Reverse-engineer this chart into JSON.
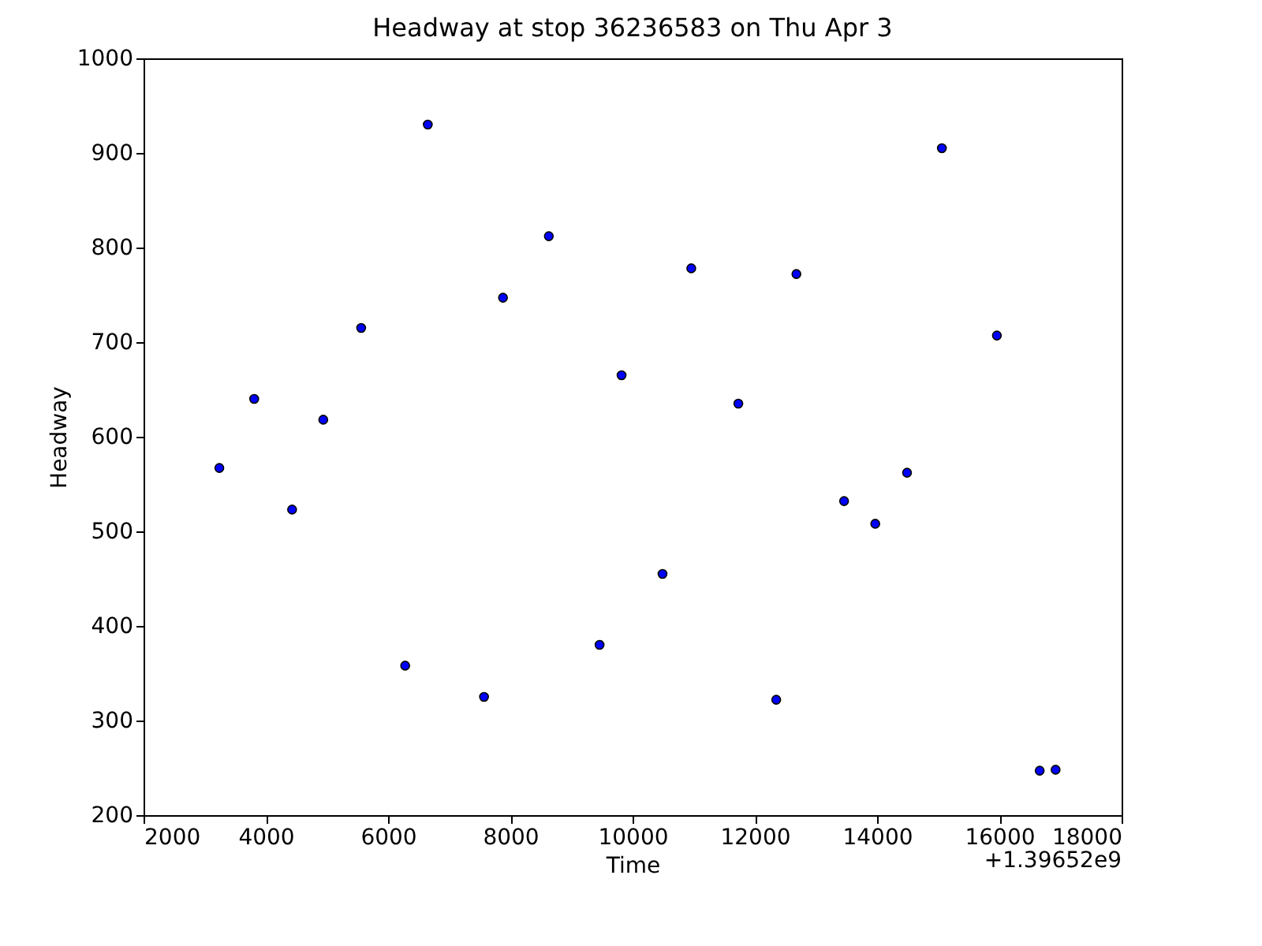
{
  "chart_data": {
    "type": "scatter",
    "title": "Headway at stop 36236583 on Thu Apr 3",
    "xlabel": "Time",
    "ylabel": "Headway",
    "annotations": [
      "+1.39652e9"
    ],
    "x": [
      3240,
      3810,
      4430,
      4940,
      5560,
      6280,
      6650,
      7570,
      7880,
      8630,
      9460,
      9820,
      10490,
      10960,
      11730,
      12350,
      12680,
      13460,
      13970,
      14490,
      15060,
      15960,
      16660,
      16920
    ],
    "series": [
      {
        "color": "#0000ff",
        "values": [
          567,
          640,
          523,
          618,
          715,
          358,
          930,
          325,
          747,
          812,
          380,
          665,
          455,
          778,
          635,
          322,
          772,
          532,
          508,
          562,
          905,
          707,
          247,
          248
        ]
      }
    ],
    "xlim": [
      2000,
      18000
    ],
    "xticks": [
      2000,
      4000,
      6000,
      8000,
      10000,
      12000,
      14000,
      16000,
      18000
    ],
    "ylim": [
      200,
      1000
    ],
    "yticks": [
      200,
      300,
      400,
      500,
      600,
      700,
      800,
      900,
      1000
    ],
    "grid": false,
    "marker": "circle",
    "legend": false
  }
}
